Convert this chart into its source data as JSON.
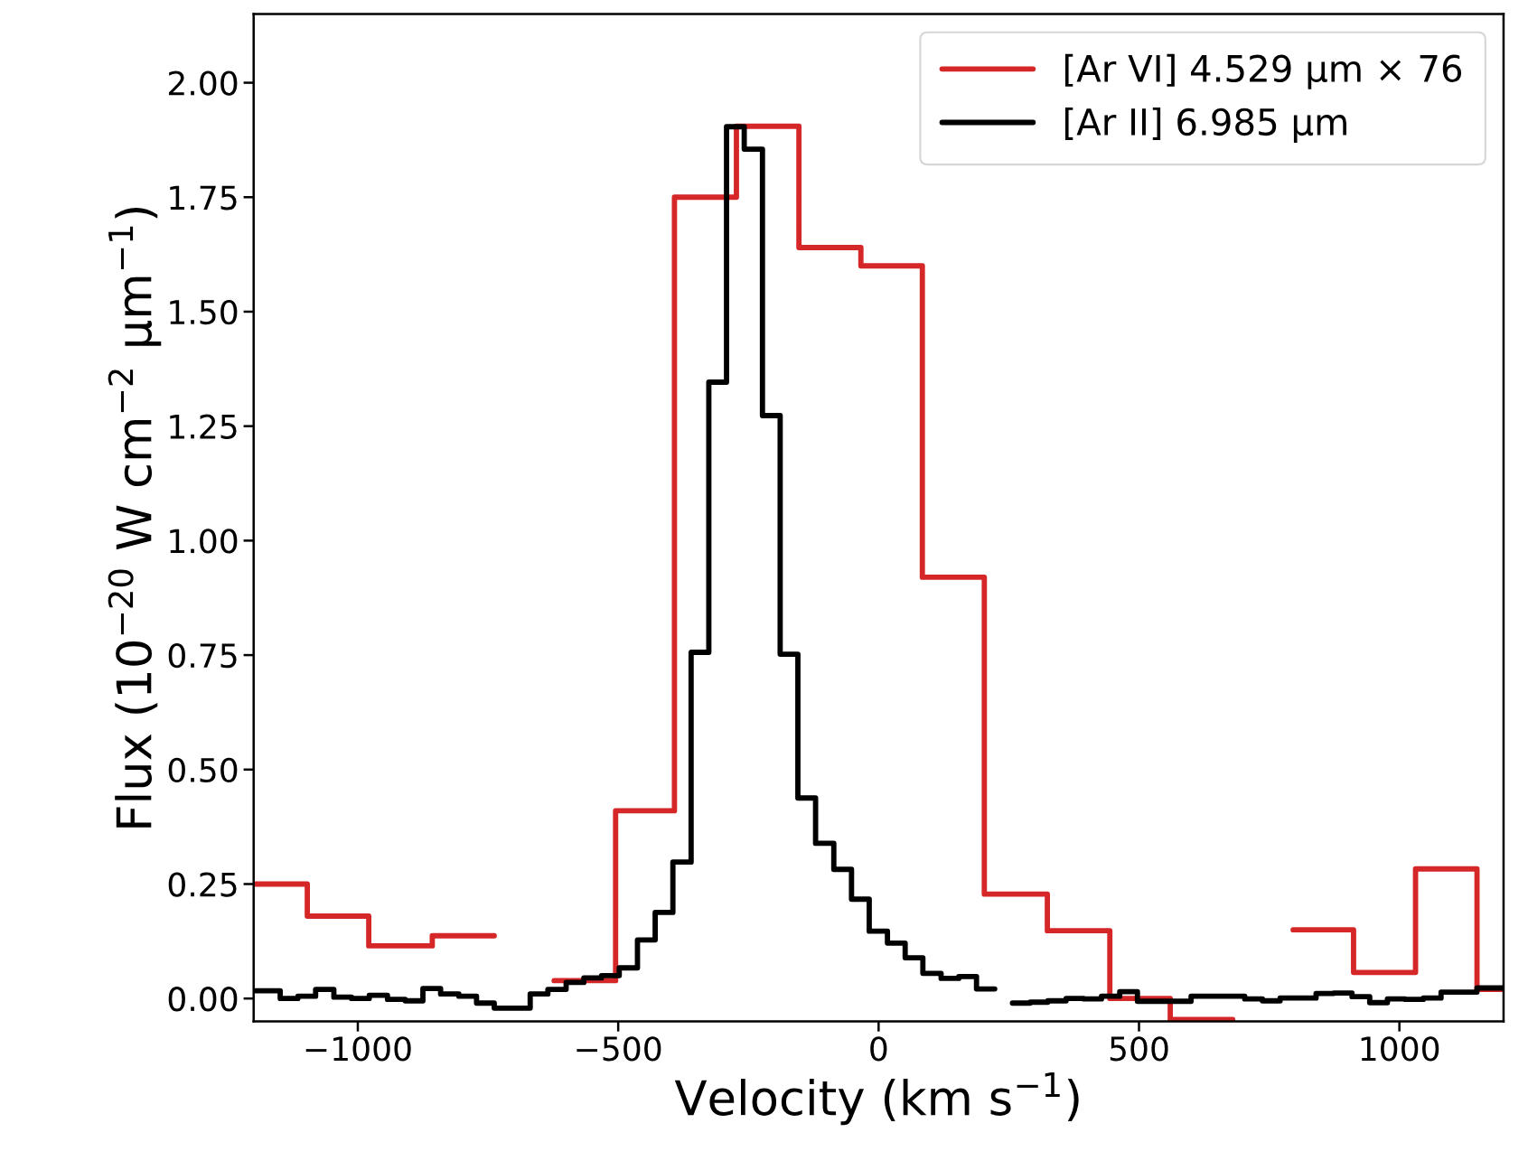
{
  "chart_data": {
    "type": "step",
    "xlabel": "Velocity (km s$^{−1}$)",
    "ylabel": "Flux (10$^{−20}$ W cm$^{−2}$ µm$^{−1}$)",
    "xlim": [
      -1200,
      1200
    ],
    "ylim": [
      -0.05,
      2.15
    ],
    "xticks": [
      {
        "value": -1000,
        "label": "−1000"
      },
      {
        "value": -500,
        "label": "−500"
      },
      0,
      500,
      1000
    ],
    "yticks": [
      {
        "value": 0,
        "label": "0.00"
      },
      0.25,
      {
        "value": 0.5,
        "label": "0.50"
      },
      0.75,
      {
        "value": 1,
        "label": "1.00"
      },
      1.25,
      {
        "value": 1.5,
        "label": "1.50"
      },
      1.75,
      {
        "value": 2,
        "label": "2.00"
      }
    ],
    "grid": false,
    "legend": "top right",
    "series": [
      {
        "name": "[Ar VI] 4.529 µm × 76",
        "color": "#d62728",
        "x": [
          -1200,
          -1097,
          -979,
          -857,
          -738,
          -623,
          -505,
          -392,
          -273,
          -153,
          -34,
          84,
          203,
          324,
          444,
          560,
          680,
          796,
          912,
          1031,
          1149,
          1200
        ],
        "values": [
          0.25,
          0.18,
          0.115,
          0.137,
          null,
          0.039,
          0.41,
          1.75,
          1.905,
          1.64,
          1.6,
          0.92,
          0.228,
          0.148,
          0.0,
          -0.046,
          null,
          0.15,
          0.057,
          0.283,
          0.02,
          0.02
        ]
      },
      {
        "name": "[Ar II] 6.985 µm",
        "color": "#000000",
        "x": [
          -1200,
          -1149,
          -1115,
          -1081,
          -1046,
          -1012,
          -978,
          -943,
          -909,
          -875,
          -841,
          -806,
          -772,
          -738,
          -703,
          -669,
          -635,
          -600,
          -566,
          -532,
          -498,
          -463,
          -429,
          -395,
          -360,
          -326,
          -292,
          -258,
          -223,
          -189,
          -155,
          -121,
          -86,
          -52,
          -18,
          17,
          51,
          85,
          120,
          154,
          188,
          223,
          257,
          291,
          325,
          360,
          394,
          428,
          463,
          497,
          531,
          566,
          600,
          634,
          668,
          703,
          737,
          771,
          806,
          840,
          874,
          909,
          943,
          977,
          1011,
          1046,
          1080,
          1114,
          1149,
          1183,
          1200
        ],
        "values": [
          0.017,
          0.0,
          0.005,
          0.02,
          0.003,
          0.0,
          0.007,
          -0.002,
          -0.005,
          0.022,
          0.01,
          0.005,
          -0.01,
          -0.021,
          -0.021,
          0.01,
          0.02,
          0.035,
          0.045,
          0.05,
          0.067,
          0.128,
          0.188,
          0.298,
          0.756,
          1.346,
          1.904,
          1.855,
          1.273,
          0.752,
          0.438,
          0.339,
          0.282,
          0.217,
          0.147,
          0.121,
          0.089,
          0.055,
          0.044,
          0.048,
          0.021,
          null,
          -0.01,
          -0.008,
          -0.005,
          0.0,
          -0.001,
          0.005,
          0.015,
          -0.006,
          -0.006,
          -0.006,
          0.005,
          0.005,
          0.005,
          -0.001,
          -0.005,
          0.001,
          0.001,
          0.011,
          0.012,
          0.004,
          -0.009,
          -0.001,
          -0.002,
          0.001,
          0.014,
          0.014,
          0.023,
          0.023,
          0.023
        ]
      }
    ]
  }
}
